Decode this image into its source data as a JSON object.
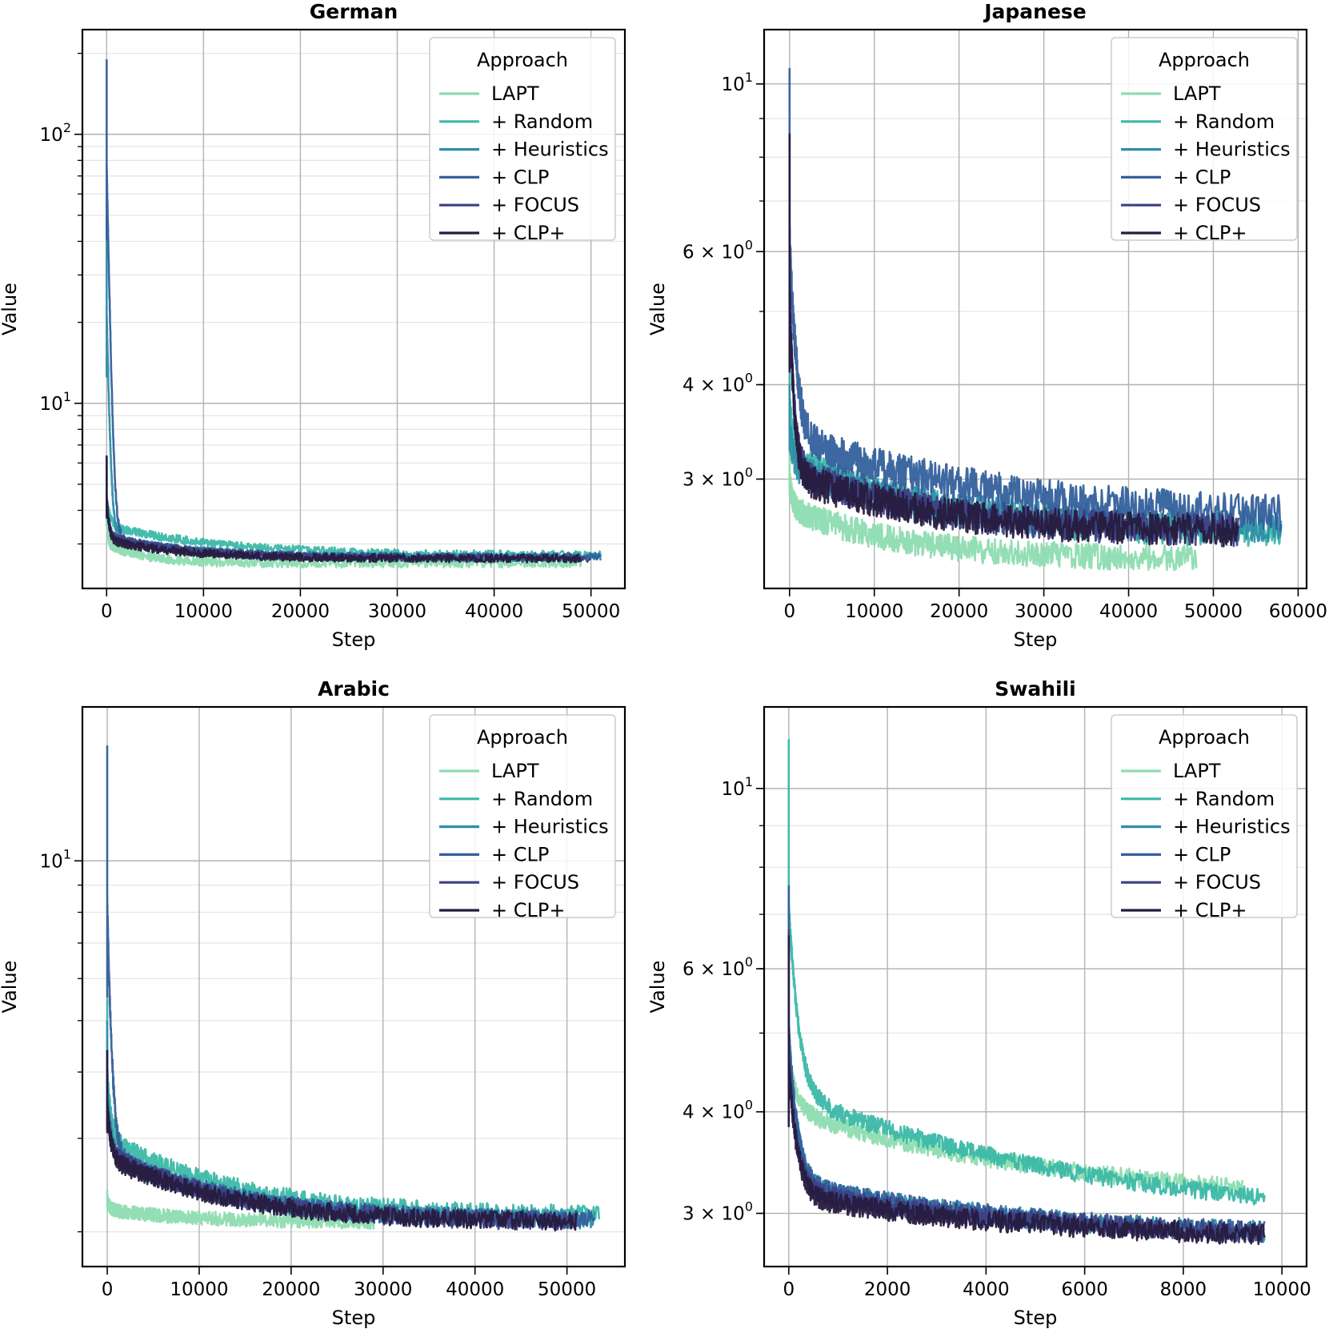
{
  "figure": {
    "colors": {
      "LAPT": "#8ddcb0",
      "+ Random": "#3bb8a8",
      "+ Heuristics": "#2f8ea8",
      "+ CLP": "#34609c",
      "+ FOCUS": "#3e3f85",
      "+ CLP+": "#271b3e"
    }
  },
  "chart_data": [
    {
      "type": "line",
      "title": "German",
      "xlabel": "Step",
      "ylabel": "Value",
      "yscale": "log",
      "xlim": [
        -2500,
        53500
      ],
      "ylim": [
        2.05,
        245
      ],
      "xticks": [
        0,
        10000,
        20000,
        30000,
        40000,
        50000
      ],
      "xtick_labels": [
        "0",
        "10000",
        "20000",
        "30000",
        "40000",
        "50000"
      ],
      "yticks": [
        10,
        100
      ],
      "ytick_labels": [
        {
          "base": "10",
          "exp": "1"
        },
        {
          "base": "10",
          "exp": "2"
        }
      ],
      "legend": {
        "title": "Approach",
        "loc": "upper right"
      },
      "series": [
        {
          "name": "LAPT",
          "end": 49000,
          "peak": 5.5,
          "plateau": 3.0,
          "tail": 2.55,
          "decay": 1500,
          "noise": 0.04
        },
        {
          "name": "+ Random",
          "end": 51000,
          "peak": 5.8,
          "plateau": 3.5,
          "tail": 2.72,
          "decay": 4500,
          "noise": 0.035
        },
        {
          "name": "+ Heuristics",
          "end": 51000,
          "peak": 50,
          "plateau": 3.2,
          "tail": 2.68,
          "decay": 3000,
          "noise": 0.035
        },
        {
          "name": "+ CLP",
          "end": 51000,
          "peak": 190,
          "plateau": 3.2,
          "tail": 2.68,
          "decay": 3000,
          "noise": 0.035
        },
        {
          "name": "+ FOCUS",
          "end": 50000,
          "peak": 6.3,
          "plateau": 3.2,
          "tail": 2.66,
          "decay": 3000,
          "noise": 0.035
        },
        {
          "name": "+ CLP+",
          "end": 49000,
          "peak": 6.4,
          "plateau": 3.1,
          "tail": 2.65,
          "decay": 3000,
          "noise": 0.035
        }
      ]
    },
    {
      "type": "line",
      "title": "Japanese",
      "xlabel": "Step",
      "ylabel": "Value",
      "yscale": "log",
      "xlim": [
        -3000,
        61000
      ],
      "ylim": [
        2.15,
        11.8
      ],
      "xticks": [
        0,
        10000,
        20000,
        30000,
        40000,
        50000,
        60000
      ],
      "xtick_labels": [
        "0",
        "10000",
        "20000",
        "30000",
        "40000",
        "50000",
        "60000"
      ],
      "yticks": [
        3,
        4,
        6,
        10
      ],
      "ytick_labels": [
        {
          "base": "3 × 10",
          "exp": "0"
        },
        {
          "base": "4 × 10",
          "exp": "0"
        },
        {
          "base": "6 × 10",
          "exp": "0"
        },
        {
          "base": "10",
          "exp": "1"
        }
      ],
      "legend": {
        "title": "Approach",
        "loc": "upper right"
      },
      "series": [
        {
          "name": "LAPT",
          "end": 48000,
          "peak": 3.3,
          "plateau": 2.75,
          "tail": 2.35,
          "decay": 5000,
          "noise": 0.04
        },
        {
          "name": "+ Random",
          "end": 58000,
          "peak": 4.5,
          "plateau": 3.2,
          "tail": 2.55,
          "decay": 6000,
          "noise": 0.05
        },
        {
          "name": "+ Heuristics",
          "end": 58000,
          "peak": 4.0,
          "plateau": 3.1,
          "tail": 2.58,
          "decay": 7000,
          "noise": 0.05
        },
        {
          "name": "+ CLP",
          "end": 58000,
          "peak": 10.5,
          "plateau": 3.4,
          "tail": 2.65,
          "decay": 9000,
          "noise": 0.055
        },
        {
          "name": "+ FOCUS",
          "end": 53000,
          "peak": 8.6,
          "plateau": 3.1,
          "tail": 2.55,
          "decay": 6000,
          "noise": 0.05
        },
        {
          "name": "+ CLP+",
          "end": 53000,
          "peak": 8.6,
          "plateau": 3.05,
          "tail": 2.55,
          "decay": 6000,
          "noise": 0.05
        }
      ]
    },
    {
      "type": "line",
      "title": "Arabic",
      "xlabel": "Step",
      "ylabel": "Value",
      "yscale": "log",
      "xlim": [
        -2700,
        56300
      ],
      "ylim": [
        1.72,
        19.5
      ],
      "xticks": [
        0,
        10000,
        20000,
        30000,
        40000,
        50000
      ],
      "xtick_labels": [
        "0",
        "10000",
        "20000",
        "30000",
        "40000",
        "50000"
      ],
      "yticks": [
        10
      ],
      "ytick_labels": [
        {
          "base": "10",
          "exp": "1"
        }
      ],
      "legend": {
        "title": "Approach",
        "loc": "upper right"
      },
      "series": [
        {
          "name": "LAPT",
          "end": 29000,
          "peak": 2.4,
          "plateau": 2.2,
          "tail": 2.08,
          "decay": 4000,
          "noise": 0.03
        },
        {
          "name": "+ Random",
          "end": 53500,
          "peak": 5.5,
          "plateau": 3.0,
          "tail": 2.15,
          "decay": 5000,
          "noise": 0.04
        },
        {
          "name": "+ Heuristics",
          "end": 53000,
          "peak": 5.0,
          "plateau": 2.8,
          "tail": 2.1,
          "decay": 5000,
          "noise": 0.04
        },
        {
          "name": "+ CLP",
          "end": 53000,
          "peak": 16.5,
          "plateau": 2.8,
          "tail": 2.1,
          "decay": 5000,
          "noise": 0.04
        },
        {
          "name": "+ FOCUS",
          "end": 51000,
          "peak": 4.4,
          "plateau": 2.8,
          "tail": 2.08,
          "decay": 5000,
          "noise": 0.04
        },
        {
          "name": "+ CLP+",
          "end": 51000,
          "peak": 4.4,
          "plateau": 2.75,
          "tail": 2.08,
          "decay": 5000,
          "noise": 0.04
        }
      ]
    },
    {
      "type": "line",
      "title": "Swahili",
      "xlabel": "Step",
      "ylabel": "Value",
      "yscale": "log",
      "xlim": [
        -500,
        10500
      ],
      "ylim": [
        2.58,
        12.6
      ],
      "xticks": [
        0,
        2000,
        4000,
        6000,
        8000,
        10000
      ],
      "xtick_labels": [
        "0",
        "2000",
        "4000",
        "6000",
        "8000",
        "10000"
      ],
      "yticks": [
        3,
        4,
        6,
        10
      ],
      "ytick_labels": [
        {
          "base": "3 × 10",
          "exp": "0"
        },
        {
          "base": "4 × 10",
          "exp": "0"
        },
        {
          "base": "6 × 10",
          "exp": "0"
        },
        {
          "base": "10",
          "exp": "1"
        }
      ],
      "legend": {
        "title": "Approach",
        "loc": "upper right"
      },
      "series": [
        {
          "name": "LAPT",
          "end": 9200,
          "peak": 5.6,
          "plateau": 4.0,
          "tail": 3.05,
          "decay": 2200,
          "noise": 0.025
        },
        {
          "name": "+ Random",
          "end": 9650,
          "peak": 11.5,
          "plateau": 4.2,
          "tail": 2.92,
          "decay": 2200,
          "noise": 0.025
        },
        {
          "name": "+ Heuristics",
          "end": 9650,
          "peak": 7.6,
          "plateau": 3.25,
          "tail": 2.78,
          "decay": 2000,
          "noise": 0.03
        },
        {
          "name": "+ CLP",
          "end": 9650,
          "peak": 7.6,
          "plateau": 3.25,
          "tail": 2.78,
          "decay": 2000,
          "noise": 0.03
        },
        {
          "name": "+ FOCUS",
          "end": 9650,
          "peak": 6.7,
          "plateau": 3.2,
          "tail": 2.78,
          "decay": 2000,
          "noise": 0.03
        },
        {
          "name": "+ CLP+",
          "end": 9650,
          "peak": 6.6,
          "plateau": 3.15,
          "tail": 2.77,
          "decay": 2000,
          "noise": 0.03
        }
      ]
    }
  ]
}
